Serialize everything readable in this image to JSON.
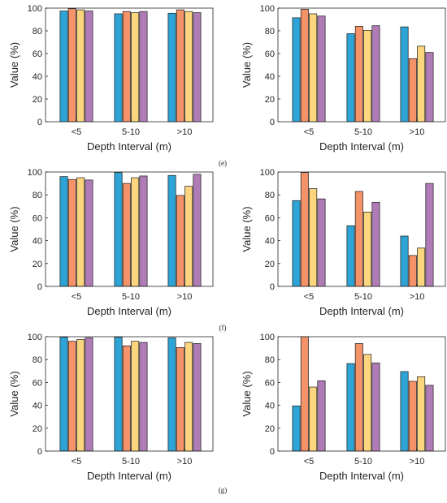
{
  "colors": [
    "#2ea3d5",
    "#f4936a",
    "#fcd57f",
    "#b07cb6"
  ],
  "row_labels": [
    "(e)",
    "(f)",
    "(g)"
  ],
  "chart_data": [
    {
      "id": "row1-left",
      "type": "bar",
      "categories": [
        "<5",
        "5-10",
        ">10"
      ],
      "series": [
        {
          "values": [
            97.5,
            95,
            95.5
          ]
        },
        {
          "values": [
            99.5,
            97,
            98.5
          ]
        },
        {
          "values": [
            98.5,
            96,
            97
          ]
        },
        {
          "values": [
            97.5,
            97,
            96
          ]
        }
      ],
      "xlabel": "Depth Interval (m)",
      "ylabel": "Value (%)",
      "ylim": [
        0,
        100
      ],
      "yticks": [
        0,
        20,
        40,
        60,
        80,
        100
      ]
    },
    {
      "id": "row1-right",
      "type": "bar",
      "categories": [
        "<5",
        "5-10",
        ">10"
      ],
      "series": [
        {
          "values": [
            91.5,
            77.5,
            83.5
          ]
        },
        {
          "values": [
            99,
            84,
            55.5
          ]
        },
        {
          "values": [
            95,
            80.5,
            66.5
          ]
        },
        {
          "values": [
            93,
            84.5,
            61
          ]
        }
      ],
      "xlabel": "Depth Interval (m)",
      "ylabel": "Value (%)",
      "ylim": [
        0,
        100
      ],
      "yticks": [
        0,
        20,
        40,
        60,
        80,
        100
      ]
    },
    {
      "id": "row2-left",
      "type": "bar",
      "categories": [
        "<5",
        "5-10",
        ">10"
      ],
      "series": [
        {
          "values": [
            96,
            99.5,
            97
          ]
        },
        {
          "values": [
            93.5,
            90,
            79.5
          ]
        },
        {
          "values": [
            95,
            95,
            87.5
          ]
        },
        {
          "values": [
            93,
            96.5,
            98
          ]
        }
      ],
      "xlabel": "Depth Interval (m)",
      "ylabel": "Value (%)",
      "ylim": [
        0,
        100
      ],
      "yticks": [
        0,
        20,
        40,
        60,
        80,
        100
      ]
    },
    {
      "id": "row2-right",
      "type": "bar",
      "categories": [
        "<5",
        "5-10",
        ">10"
      ],
      "series": [
        {
          "values": [
            75,
            53,
            44
          ]
        },
        {
          "values": [
            99.5,
            83,
            27
          ]
        },
        {
          "values": [
            85.5,
            65,
            33.5
          ]
        },
        {
          "values": [
            76.5,
            73.5,
            90
          ]
        }
      ],
      "xlabel": "Depth Interval (m)",
      "ylabel": "Value (%)",
      "ylim": [
        0,
        100
      ],
      "yticks": [
        0,
        20,
        40,
        60,
        80,
        100
      ]
    },
    {
      "id": "row3-left",
      "type": "bar",
      "categories": [
        "<5",
        "5-10",
        ">10"
      ],
      "series": [
        {
          "values": [
            99.5,
            99.5,
            99
          ]
        },
        {
          "values": [
            96,
            92,
            90.5
          ]
        },
        {
          "values": [
            97.5,
            96,
            95
          ]
        },
        {
          "values": [
            99,
            95,
            94
          ]
        }
      ],
      "xlabel": "Depth Interval (m)",
      "ylabel": "Value (%)",
      "ylim": [
        0,
        100
      ],
      "yticks": [
        0,
        20,
        40,
        60,
        80,
        100
      ]
    },
    {
      "id": "row3-right",
      "type": "bar",
      "categories": [
        "<5",
        "5-10",
        ">10"
      ],
      "series": [
        {
          "values": [
            39.5,
            76.5,
            69.5
          ]
        },
        {
          "values": [
            100,
            94,
            61
          ]
        },
        {
          "values": [
            56,
            84.5,
            65
          ]
        },
        {
          "values": [
            61.5,
            77,
            57.5
          ]
        }
      ],
      "xlabel": "Depth Interval (m)",
      "ylabel": "Value (%)",
      "ylim": [
        0,
        100
      ],
      "yticks": [
        0,
        20,
        40,
        60,
        80,
        100
      ]
    }
  ]
}
